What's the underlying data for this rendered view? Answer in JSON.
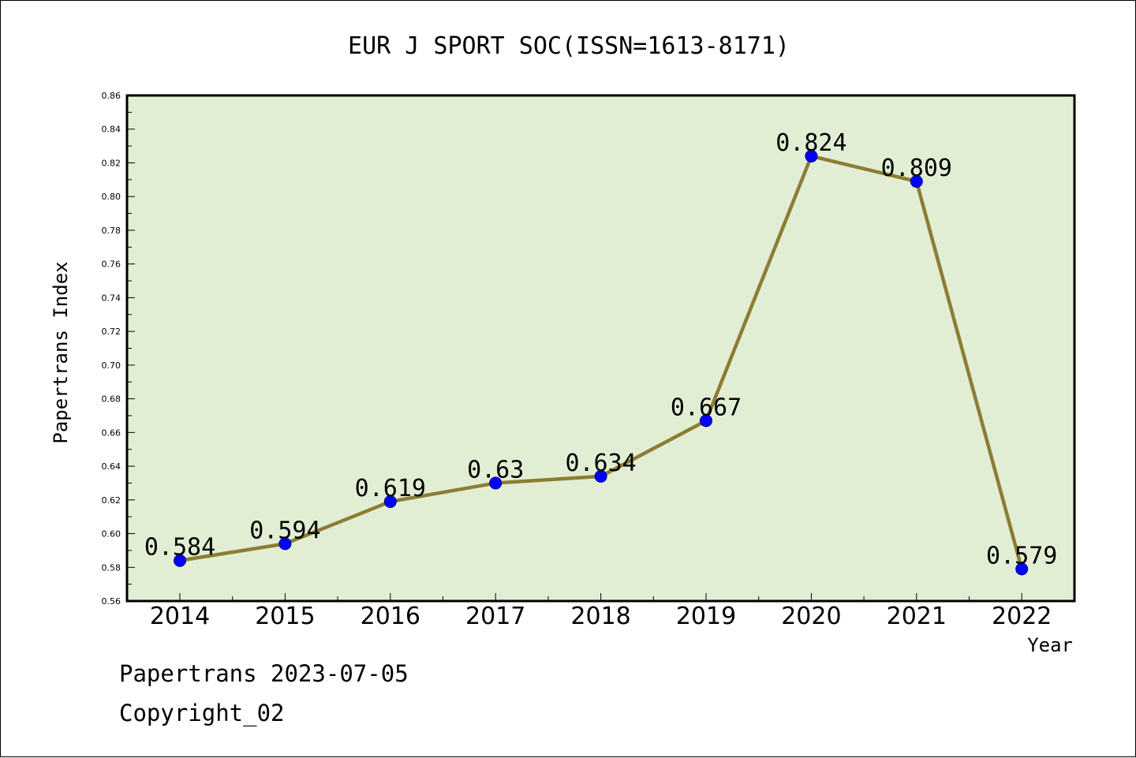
{
  "colors": {
    "plot_background": "#e2eed4",
    "line": "#8b7d33",
    "marker": "#0000ff",
    "marker_edge": "#00008b"
  },
  "chart_data": {
    "type": "line",
    "title": "EUR J SPORT SOC(ISSN=1613-8171)",
    "xlabel": "Year",
    "ylabel": "Papertrans Index",
    "categories": [
      "2014",
      "2015",
      "2016",
      "2017",
      "2018",
      "2019",
      "2020",
      "2021",
      "2022"
    ],
    "series": [
      {
        "values": [
          0.584,
          0.594,
          0.619,
          0.63,
          0.634,
          0.667,
          0.824,
          0.809,
          0.579
        ],
        "data_labels": [
          "0.584",
          "0.594",
          "0.619",
          "0.63",
          "0.634",
          "0.667",
          "0.824",
          "0.809",
          "0.579"
        ]
      }
    ],
    "ylim": [
      0.56,
      0.86
    ],
    "yticks": [
      "0.56",
      "0.58",
      "0.60",
      "0.62",
      "0.64",
      "0.66",
      "0.68",
      "0.70",
      "0.72",
      "0.74",
      "0.76",
      "0.78",
      "0.80",
      "0.82",
      "0.84",
      "0.86"
    ],
    "grid": false,
    "legend": "none"
  },
  "footer": {
    "line1": "Papertrans 2023-07-05",
    "line2": "Copyright_02"
  }
}
